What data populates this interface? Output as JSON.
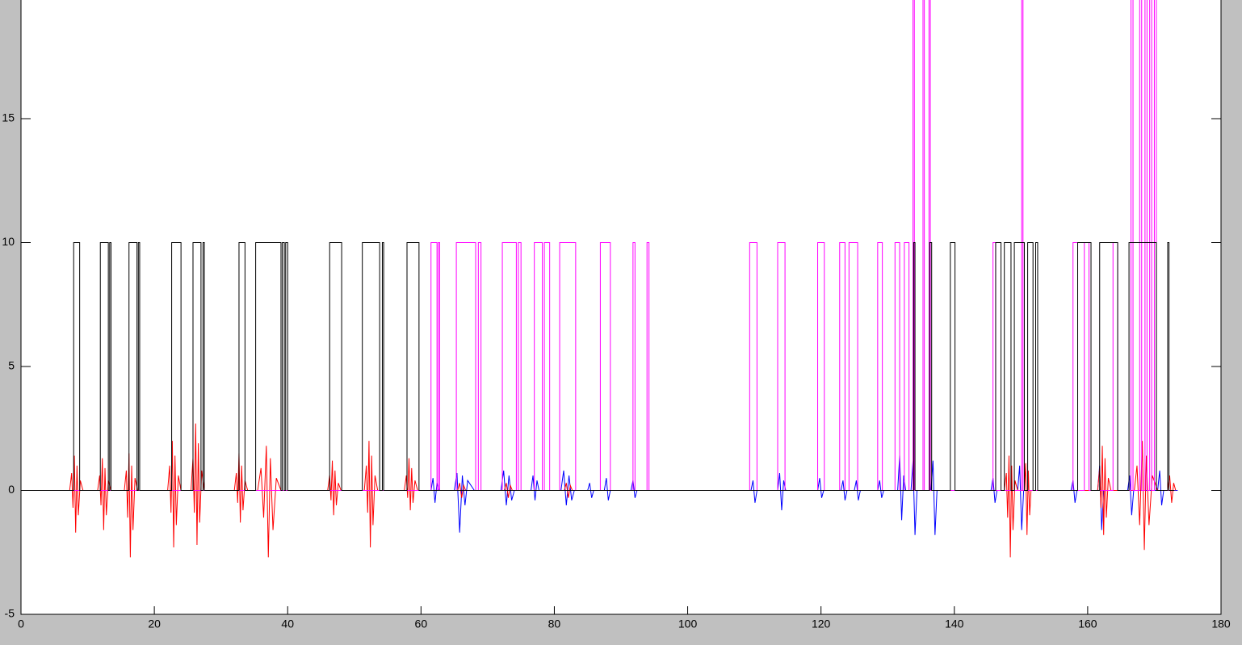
{
  "chart_data": {
    "type": "line",
    "xlim": [
      0,
      180
    ],
    "xticks": [
      0,
      20,
      40,
      60,
      80,
      100,
      120,
      140,
      160,
      180
    ],
    "ylim": [
      -5,
      20
    ],
    "yticks": [
      -5,
      0,
      5,
      10,
      15
    ],
    "series": [
      {
        "color": "#0000ff",
        "x": [
          0,
          61.5,
          61.8,
          62.1,
          62.4,
          62.7,
          65,
          65.4,
          65.8,
          66.2,
          66.6,
          67,
          68,
          72,
          72.4,
          72.8,
          73.2,
          73.6,
          74,
          76.5,
          76.8,
          77.1,
          77.4,
          77.7,
          81,
          81.4,
          81.8,
          82.2,
          82.6,
          83,
          85,
          85.3,
          85.6,
          85.9,
          87.5,
          87.8,
          88.1,
          88.4,
          91.5,
          91.8,
          92.1,
          92.4,
          109.5,
          109.8,
          110.1,
          110.4,
          113.5,
          113.8,
          114.1,
          114.4,
          114.7,
          119.5,
          119.8,
          120.1,
          120.4,
          123,
          123.3,
          123.6,
          123.9,
          125,
          125.3,
          125.6,
          125.9,
          128.5,
          128.8,
          129.1,
          129.4,
          131.5,
          131.8,
          132.1,
          132.4,
          132.7,
          133.5,
          133.8,
          134.1,
          134.4,
          136.5,
          136.8,
          137.1,
          137.4,
          145.5,
          145.8,
          146.1,
          146.4,
          149.5,
          149.8,
          150.1,
          150.4,
          157.5,
          157.8,
          158.1,
          158.4,
          161.5,
          161.8,
          162.1,
          162.4,
          166,
          166.3,
          166.6,
          166.9,
          170.5,
          170.8,
          171.1,
          171.4,
          173.5
        ],
        "values": [
          0,
          0,
          0.5,
          -0.5,
          0.3,
          0,
          0,
          0.7,
          -1.7,
          0.6,
          -0.6,
          0.4,
          0,
          0,
          0.8,
          -0.6,
          0.6,
          -0.4,
          0,
          0,
          0.6,
          -0.4,
          0.4,
          0,
          0,
          0.8,
          -0.6,
          0.6,
          -0.4,
          0,
          0,
          0.3,
          -0.3,
          0,
          0,
          0.5,
          -0.4,
          0,
          0,
          0.4,
          -0.3,
          0,
          0,
          0.4,
          -0.5,
          0,
          0,
          0.7,
          -0.8,
          0.4,
          0,
          0,
          0.5,
          -0.3,
          0,
          0,
          0.4,
          -0.4,
          0,
          0,
          0.4,
          -0.4,
          0,
          0,
          0.4,
          -0.3,
          0,
          0,
          1.4,
          -1.2,
          0.6,
          0,
          0,
          1.2,
          -1.8,
          0,
          0,
          1.2,
          -1.8,
          0,
          0,
          0.5,
          -0.5,
          0,
          0,
          1.0,
          -1.6,
          0,
          0,
          0.4,
          -0.5,
          0,
          0,
          1.0,
          -1.6,
          0,
          0,
          0.6,
          -1.0,
          0,
          0,
          0.8,
          -0.6,
          0,
          0
        ]
      },
      {
        "color": "#ff0000",
        "x": [
          0,
          7.3,
          7.6,
          7.8,
          8.0,
          8.2,
          8.4,
          8.6,
          8.9,
          9.3,
          11.5,
          11.8,
          12.0,
          12.2,
          12.4,
          12.6,
          12.8,
          13.1,
          13.5,
          15.5,
          15.8,
          16.0,
          16.2,
          16.4,
          16.6,
          16.8,
          17.1,
          17.5,
          22,
          22.3,
          22.5,
          22.7,
          22.9,
          23.1,
          23.3,
          23.6,
          24,
          25.5,
          25.8,
          26.0,
          26.2,
          26.4,
          26.6,
          26.8,
          27.1,
          27.5,
          32,
          32.3,
          32.5,
          32.7,
          32.9,
          33.1,
          33.3,
          33.6,
          34,
          35.5,
          36,
          36.4,
          36.8,
          37.1,
          37.4,
          37.8,
          38.3,
          39,
          46,
          46.3,
          46.5,
          46.7,
          46.9,
          47.1,
          47.3,
          47.6,
          48,
          51.5,
          51.8,
          52.0,
          52.2,
          52.4,
          52.6,
          52.8,
          53.1,
          53.5,
          57.5,
          57.8,
          58.0,
          58.2,
          58.4,
          58.6,
          58.8,
          59.1,
          59.5,
          65.5,
          65.8,
          66.1,
          66.4,
          66.7,
          72.5,
          72.8,
          73.1,
          73.4,
          73.7,
          81.5,
          81.8,
          82.1,
          82.4,
          82.7,
          147.5,
          147.8,
          148.0,
          148.2,
          148.4,
          148.6,
          148.8,
          149.1,
          149.5,
          150.5,
          150.7,
          150.9,
          151.1,
          151.3,
          151.5,
          161.5,
          161.8,
          162.0,
          162.2,
          162.4,
          162.6,
          162.8,
          163.1,
          163.5,
          167,
          167.4,
          167.8,
          168.2,
          168.5,
          168.8,
          169.2,
          169.7,
          170.5,
          172,
          172.3,
          172.6,
          172.9,
          173.2
        ],
        "values": [
          0,
          0,
          0.7,
          -0.7,
          1.4,
          -1.7,
          1.0,
          -1.0,
          0.4,
          0,
          0,
          0.6,
          -0.6,
          1.3,
          -1.6,
          0.9,
          -1.0,
          0.4,
          0,
          0,
          0.8,
          -1.1,
          1.5,
          -2.7,
          1.0,
          -1.6,
          0.5,
          0,
          0,
          1.0,
          -0.9,
          2.0,
          -2.3,
          1.4,
          -1.4,
          0.6,
          0,
          0,
          1.3,
          -0.9,
          2.7,
          -2.2,
          1.9,
          -1.3,
          0.8,
          0,
          0,
          0.7,
          -0.5,
          1.5,
          -1.3,
          1.0,
          -0.8,
          0.4,
          0,
          0,
          0.9,
          -1.1,
          1.8,
          -2.7,
          1.3,
          -1.6,
          0.5,
          0,
          0,
          0.6,
          -0.4,
          1.2,
          -1.0,
          0.8,
          -0.6,
          0.3,
          0,
          0,
          1.0,
          -0.9,
          2.0,
          -2.3,
          1.4,
          -1.4,
          0.6,
          0,
          0,
          0.6,
          -0.3,
          1.3,
          -0.8,
          0.9,
          -0.5,
          0.4,
          0,
          0,
          0.3,
          -0.3,
          0.2,
          0,
          0,
          0.3,
          -0.3,
          0.2,
          0,
          0,
          0.3,
          -0.3,
          0.2,
          0,
          0,
          0.7,
          -1.1,
          1.4,
          -2.7,
          1.0,
          -1.6,
          0.4,
          0,
          0,
          1.1,
          -1.8,
          0.8,
          -1.0,
          0,
          0,
          0.9,
          -0.7,
          1.8,
          -1.8,
          1.3,
          -1.1,
          0.5,
          0,
          0,
          1.0,
          -1.4,
          2.0,
          -2.4,
          1.4,
          -1.4,
          0.6,
          0,
          0,
          0.6,
          -0.5,
          0.3,
          0
        ]
      },
      {
        "color": "#ff00ff",
        "x": [
          0,
          61.5,
          61.5,
          62.4,
          62.4,
          62.6,
          62.6,
          62.8,
          62.8,
          65.3,
          65.3,
          68.2,
          68.2,
          68.6,
          68.6,
          69.0,
          69.0,
          72.2,
          72.2,
          74.3,
          74.3,
          74.6,
          74.6,
          75.0,
          75.0,
          77.0,
          77.0,
          78.2,
          78.2,
          78.5,
          78.5,
          79.3,
          79.3,
          80.8,
          80.8,
          83.2,
          83.2,
          86.9,
          86.9,
          88.4,
          88.4,
          91.8,
          91.8,
          92.1,
          92.1,
          93.9,
          93.9,
          94.2,
          94.2,
          109.3,
          109.3,
          110.4,
          110.4,
          113.5,
          113.5,
          114.6,
          114.6,
          119.5,
          119.5,
          120.5,
          120.5,
          122.8,
          122.8,
          123.6,
          123.6,
          124.2,
          124.2,
          125.5,
          125.5,
          128.5,
          128.5,
          129.2,
          129.2,
          131.1,
          131.1,
          131.8,
          131.8,
          132.5,
          132.5,
          133.2,
          133.2,
          133.8,
          133.8,
          134.0,
          134.0,
          135.3,
          135.3,
          135.5,
          135.5,
          136.2,
          136.2,
          136.4,
          136.4,
          145.8,
          145.8,
          146.2,
          146.2,
          150.1,
          150.1,
          150.3,
          150.3,
          157.8,
          157.8,
          158.5,
          158.5,
          159.5,
          159.5,
          160.2,
          160.2,
          163.8,
          163.8,
          164.5,
          164.5,
          166.5,
          166.5,
          166.8,
          166.8,
          167.8,
          167.8,
          168.1,
          168.1,
          168.6,
          168.6,
          168.9,
          168.9,
          169.3,
          169.3,
          169.6,
          169.6,
          170.0,
          170.0,
          170.3,
          170.3,
          173
        ],
        "values": [
          0,
          0,
          10,
          10,
          0,
          0,
          10,
          10,
          0,
          0,
          10,
          10,
          0,
          0,
          10,
          10,
          0,
          0,
          10,
          10,
          0,
          0,
          10,
          10,
          0,
          0,
          10,
          10,
          0,
          0,
          10,
          10,
          0,
          0,
          10,
          10,
          0,
          0,
          10,
          10,
          0,
          0,
          10,
          10,
          0,
          0,
          10,
          10,
          0,
          0,
          10,
          10,
          0,
          0,
          10,
          10,
          0,
          0,
          10,
          10,
          0,
          0,
          10,
          10,
          0,
          0,
          10,
          10,
          0,
          0,
          10,
          10,
          0,
          0,
          10,
          10,
          0,
          0,
          10,
          10,
          0,
          0,
          20,
          20,
          0,
          0,
          20,
          20,
          0,
          0,
          20,
          20,
          0,
          0,
          10,
          10,
          0,
          0,
          20,
          20,
          0,
          0,
          10,
          10,
          0,
          0,
          10,
          10,
          0,
          0,
          10,
          10,
          0,
          0,
          20,
          20,
          0,
          0,
          20,
          20,
          0,
          0,
          20,
          20,
          0,
          0,
          20,
          20,
          0,
          0,
          20,
          20,
          0,
          0
        ]
      },
      {
        "color": "#000000",
        "x": [
          0,
          7.9,
          7.9,
          8.8,
          8.8,
          11.9,
          11.9,
          13.1,
          13.1,
          13.3,
          13.3,
          13.5,
          13.5,
          16.2,
          16.2,
          17.4,
          17.4,
          17.6,
          17.6,
          17.8,
          17.8,
          22.6,
          22.6,
          24.0,
          24.0,
          25.8,
          25.8,
          27.0,
          27.0,
          27.3,
          27.3,
          27.5,
          27.5,
          32.7,
          32.7,
          33.6,
          33.6,
          35.2,
          35.2,
          39.0,
          39.0,
          39.2,
          39.2,
          39.5,
          39.5,
          39.7,
          39.7,
          40.0,
          40.0,
          46.3,
          46.3,
          48.1,
          48.1,
          51.2,
          51.2,
          53.8,
          53.8,
          54.2,
          54.2,
          54.4,
          54.4,
          57.9,
          57.9,
          59.7,
          59.7,
          133.9,
          133.9,
          134.1,
          134.1,
          136.3,
          136.3,
          136.6,
          136.6,
          139.4,
          139.4,
          140.1,
          140.1,
          146.2,
          146.2,
          147.0,
          147.0,
          147.5,
          147.5,
          148.5,
          148.5,
          149.0,
          149.0,
          150.5,
          150.5,
          151.0,
          151.0,
          151.8,
          151.8,
          152.2,
          152.2,
          152.5,
          152.5,
          158.5,
          158.5,
          160.5,
          160.5,
          161.8,
          161.8,
          164.5,
          164.5,
          166.2,
          166.2,
          170.3,
          170.3,
          172.0,
          172.0,
          172.2,
          172.2,
          173
        ],
        "values": [
          0,
          0,
          10,
          10,
          0,
          0,
          10,
          10,
          0,
          0,
          10,
          10,
          0,
          0,
          10,
          10,
          0,
          0,
          10,
          10,
          0,
          0,
          10,
          10,
          0,
          0,
          10,
          10,
          0,
          0,
          10,
          10,
          0,
          0,
          10,
          10,
          0,
          0,
          10,
          10,
          0,
          0,
          10,
          10,
          0,
          0,
          10,
          10,
          0,
          0,
          10,
          10,
          0,
          0,
          10,
          10,
          0,
          0,
          10,
          10,
          0,
          0,
          10,
          10,
          0,
          0,
          10,
          10,
          0,
          0,
          10,
          10,
          0,
          0,
          10,
          10,
          0,
          0,
          10,
          10,
          0,
          0,
          10,
          10,
          0,
          0,
          10,
          10,
          0,
          0,
          10,
          10,
          0,
          0,
          10,
          10,
          0,
          0,
          10,
          10,
          0,
          0,
          10,
          10,
          0,
          0,
          10,
          10,
          0,
          0,
          10,
          10,
          0,
          0
        ]
      }
    ]
  }
}
